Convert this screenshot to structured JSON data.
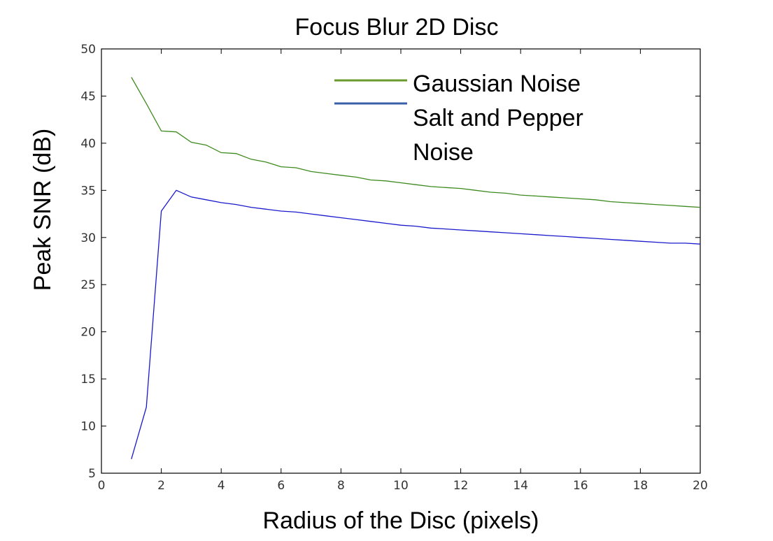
{
  "chart_data": {
    "type": "line",
    "title": "Focus Blur 2D Disc",
    "xlabel": "Radius of the Disc (pixels)",
    "ylabel": "Peak SNR (dB)",
    "xlim": [
      0,
      20
    ],
    "ylim": [
      5,
      50
    ],
    "xticks": [
      0,
      2,
      4,
      6,
      8,
      10,
      12,
      14,
      16,
      18,
      20
    ],
    "yticks": [
      5,
      10,
      15,
      20,
      25,
      30,
      35,
      40,
      45,
      50
    ],
    "grid": false,
    "legend_position": "top-right",
    "x": [
      1,
      1.5,
      2,
      2.5,
      3,
      3.5,
      4,
      4.5,
      5,
      5.5,
      6,
      6.5,
      7,
      7.5,
      8,
      8.5,
      9,
      9.5,
      10,
      10.5,
      11,
      11.5,
      12,
      12.5,
      13,
      13.5,
      14,
      14.5,
      15,
      15.5,
      16,
      16.5,
      17,
      17.5,
      18,
      18.5,
      19,
      19.5,
      20
    ],
    "series": [
      {
        "name": "Gaussian Noise",
        "color": "#3d8a1e",
        "legend_color": "#6a9a2c",
        "values": [
          47.0,
          44.2,
          41.3,
          41.2,
          40.1,
          39.8,
          39.0,
          38.9,
          38.3,
          38.0,
          37.5,
          37.4,
          37.0,
          36.8,
          36.6,
          36.4,
          36.1,
          36.0,
          35.8,
          35.6,
          35.4,
          35.3,
          35.2,
          35.0,
          34.8,
          34.7,
          34.5,
          34.4,
          34.3,
          34.2,
          34.1,
          34.0,
          33.8,
          33.7,
          33.6,
          33.5,
          33.4,
          33.3,
          33.2
        ]
      },
      {
        "name": "Salt and Pepper Noise",
        "color": "#1a1acc",
        "legend_color": "#3a5fa8",
        "values": [
          6.5,
          12.0,
          32.8,
          35.0,
          34.3,
          34.0,
          33.7,
          33.5,
          33.2,
          33.0,
          32.8,
          32.7,
          32.5,
          32.3,
          32.1,
          31.9,
          31.7,
          31.5,
          31.3,
          31.2,
          31.0,
          30.9,
          30.8,
          30.7,
          30.6,
          30.5,
          30.4,
          30.3,
          30.2,
          30.1,
          30.0,
          29.9,
          29.8,
          29.7,
          29.6,
          29.5,
          29.4,
          29.4,
          29.3
        ]
      }
    ],
    "legend": {
      "entries": [
        {
          "lines": [
            "Gaussian Noise"
          ]
        },
        {
          "lines": [
            "Salt and Pepper",
            "Noise"
          ]
        }
      ]
    }
  }
}
